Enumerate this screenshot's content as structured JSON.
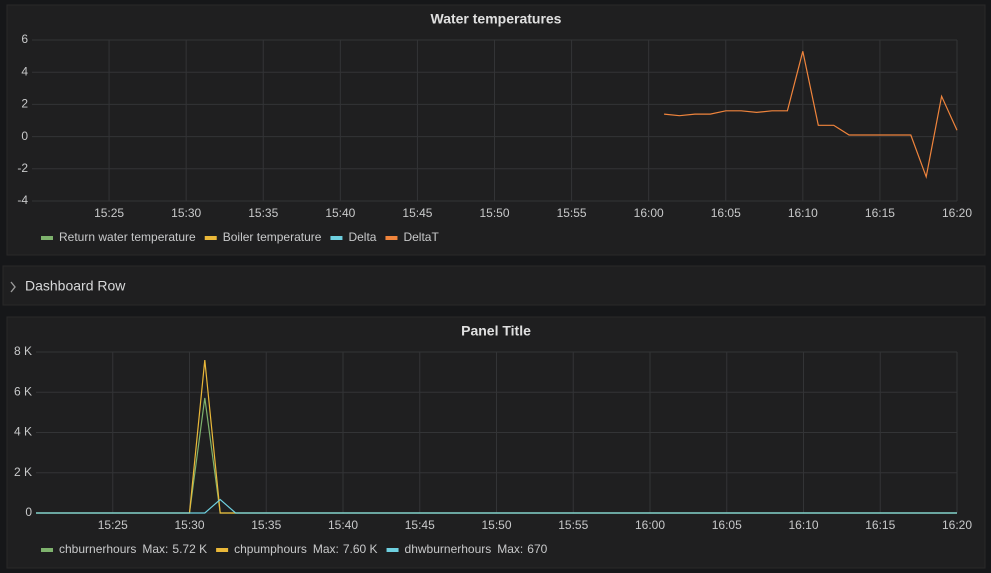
{
  "chart_data": [
    {
      "type": "line",
      "title": "Water temperatures",
      "x": [
        "16:01",
        "16:02",
        "16:03",
        "16:04",
        "16:05",
        "16:06",
        "16:07",
        "16:08",
        "16:09",
        "16:10",
        "16:11",
        "16:12",
        "16:13",
        "16:14",
        "16:15",
        "16:16",
        "16:17",
        "16:18",
        "16:19",
        "16:20"
      ],
      "series": [
        {
          "name": "Return water temperature",
          "color": "#7eb26d",
          "values": [
            null,
            null,
            null,
            null,
            null,
            null,
            null,
            null,
            null,
            null,
            null,
            null,
            null,
            null,
            null,
            null,
            null,
            null,
            null,
            null
          ]
        },
        {
          "name": "Boiler temperature",
          "color": "#eab839",
          "values": [
            null,
            null,
            null,
            null,
            null,
            null,
            null,
            null,
            null,
            null,
            null,
            null,
            null,
            null,
            null,
            null,
            null,
            null,
            null,
            null
          ]
        },
        {
          "name": "Delta",
          "color": "#6ed0e0",
          "values": [
            null,
            null,
            null,
            null,
            null,
            null,
            null,
            null,
            null,
            null,
            null,
            null,
            null,
            null,
            null,
            null,
            null,
            null,
            null,
            null
          ]
        },
        {
          "name": "DeltaT",
          "color": "#ef843c",
          "values": [
            1.4,
            1.3,
            1.4,
            1.4,
            1.6,
            1.6,
            1.5,
            1.6,
            1.6,
            5.3,
            0.7,
            0.7,
            0.1,
            0.1,
            0.1,
            0.1,
            0.1,
            -2.5,
            2.5,
            0.4
          ]
        }
      ],
      "xlim": [
        "15:20",
        "16:20"
      ],
      "xticks": [
        "15:25",
        "15:30",
        "15:35",
        "15:40",
        "15:45",
        "15:50",
        "15:55",
        "16:00",
        "16:05",
        "16:10",
        "16:15",
        "16:20"
      ],
      "ylim": [
        -4,
        6
      ],
      "yticks": [
        -4,
        -2,
        0,
        2,
        4,
        6
      ],
      "grid": true
    },
    {
      "type": "line",
      "title": "Panel Title",
      "legend_stat": "Max:",
      "x": [
        "15:20",
        "15:30",
        "15:31",
        "15:32",
        "15:33",
        "16:20"
      ],
      "series": [
        {
          "name": "chburnerhours",
          "color": "#7eb26d",
          "values": [
            0,
            0,
            5720,
            0,
            0,
            0
          ],
          "max": {
            "value": 5720,
            "label": "5.72 K"
          }
        },
        {
          "name": "chpumphours",
          "color": "#eab839",
          "values": [
            0,
            0,
            7600,
            0,
            0,
            0
          ],
          "max": {
            "value": 7600,
            "label": "7.60 K"
          }
        },
        {
          "name": "dhwburnerhours",
          "color": "#6ed0e0",
          "values": [
            0,
            0,
            0,
            670,
            0,
            0
          ],
          "max": {
            "value": 670,
            "label": "670"
          }
        }
      ],
      "xlim": [
        "15:20",
        "16:20"
      ],
      "xticks": [
        "15:25",
        "15:30",
        "15:35",
        "15:40",
        "15:45",
        "15:50",
        "15:55",
        "16:00",
        "16:05",
        "16:10",
        "16:15",
        "16:20"
      ],
      "ylim": [
        0,
        8000
      ],
      "yticks": [
        0,
        {
          "value": 2000,
          "label": "2 K"
        },
        {
          "value": 4000,
          "label": "4 K"
        },
        {
          "value": 6000,
          "label": "6 K"
        },
        {
          "value": 8000,
          "label": "8 K"
        }
      ],
      "grid": true
    }
  ],
  "row": {
    "title": "Dashboard Row"
  }
}
